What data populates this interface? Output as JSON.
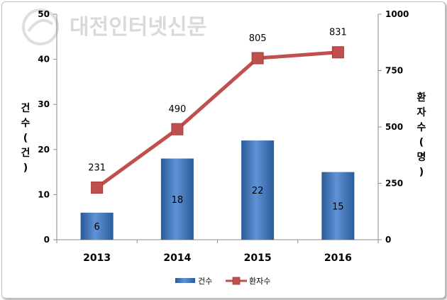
{
  "watermark": "대전인터넷신문",
  "chart_data": {
    "type": "bar+line",
    "categories": [
      "2013",
      "2014",
      "2015",
      "2016"
    ],
    "series": [
      {
        "name": "건수",
        "type": "bar",
        "axis": "left",
        "values": [
          6,
          18,
          22,
          15
        ],
        "color": "#4a7ebb"
      },
      {
        "name": "환자수",
        "type": "line",
        "axis": "right",
        "values": [
          231,
          490,
          805,
          831
        ],
        "color": "#c0504d"
      }
    ],
    "y_left": {
      "label": "건수(건)",
      "range": [
        0,
        50
      ],
      "ticks": [
        "0",
        "10",
        "20",
        "30",
        "40",
        "50"
      ]
    },
    "y_right": {
      "label": "환자수(명)",
      "range": [
        0,
        1000
      ],
      "ticks": [
        "0",
        "250",
        "500",
        "750",
        "1000"
      ]
    },
    "legend": {
      "position": "bottom"
    },
    "grid": false
  }
}
